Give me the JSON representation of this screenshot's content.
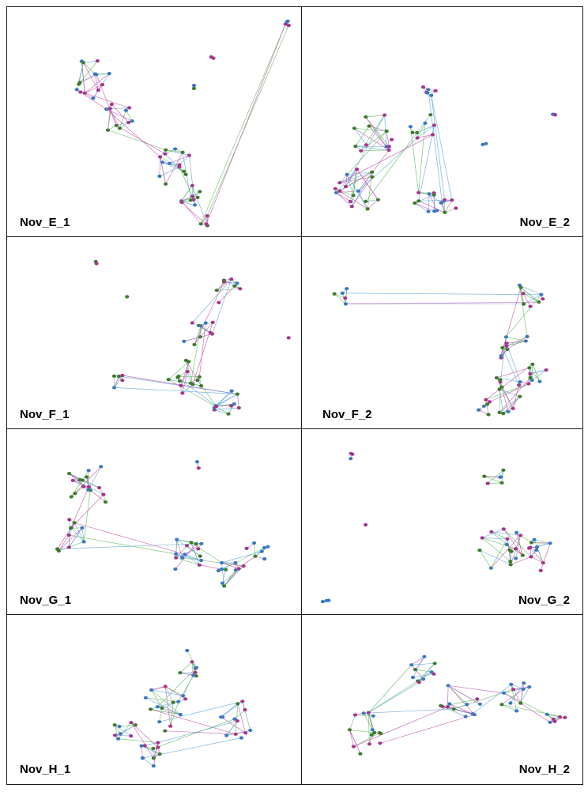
{
  "panels": [
    {
      "label": "Nov_E_1"
    },
    {
      "label": "Nov_E_2"
    },
    {
      "label": "Nov_F_1"
    },
    {
      "label": "Nov_F_2"
    },
    {
      "label": "Nov_G_1"
    },
    {
      "label": "Nov_G_2"
    },
    {
      "label": "Nov_H_1"
    },
    {
      "label": "Nov_H_2"
    }
  ],
  "colors": {
    "border": "#1a1a1a",
    "node_blue": "#3a78c2",
    "node_green": "#3f7a2e",
    "node_magenta": "#a8358c",
    "edge_blue": "#5aa5d8",
    "edge_green": "#5cb85c",
    "edge_magenta": "#c252a8"
  }
}
